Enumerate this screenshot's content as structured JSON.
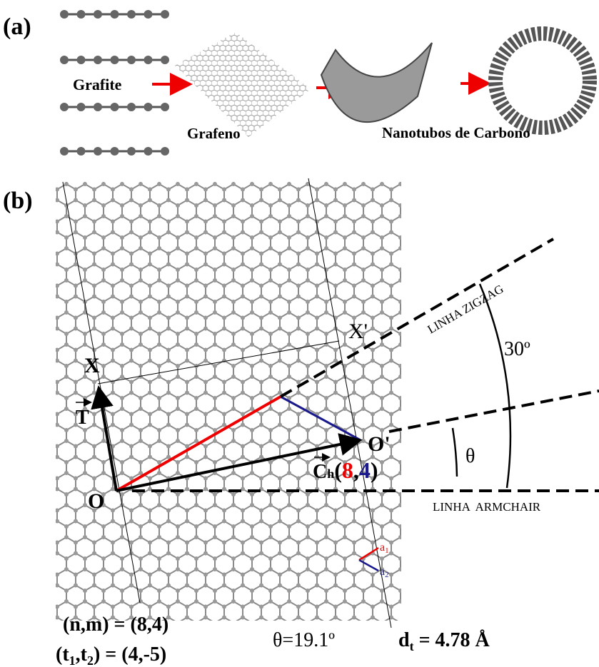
{
  "panel_a": {
    "label": "(a)",
    "graphite": "Grafite",
    "graphene": "Grafeno",
    "nanotubes": "Nanotubos de Carbono"
  },
  "panel_b": {
    "label": "(b)",
    "points": {
      "X": "X",
      "X_prime": "X'",
      "O": "O",
      "O_prime": "O'"
    },
    "vectors": {
      "T": "T",
      "C": "C",
      "C_sub": "h",
      "open": "(",
      "n": "8",
      "comma": ",",
      "m": "4",
      "close": ")",
      "a1": "a",
      "a1_sub": "1",
      "a2": "a",
      "a2_sub": "2"
    },
    "lines": {
      "zigzag": "LINHA ZIGZAG",
      "armchair": "LINHA  ARMCHAIR",
      "angle_30": "30º",
      "theta": "θ"
    },
    "equations": {
      "nm": "(n,m) = (8,4)",
      "t_open": "(t",
      "t1": "1",
      "t_mid": ",t",
      "t2": "2",
      "t_rest": ") = (4,-5)",
      "theta_value": "θ=19.1º",
      "d": "d",
      "d_sub": "t",
      "d_rest": " = 4.78 Å"
    }
  }
}
